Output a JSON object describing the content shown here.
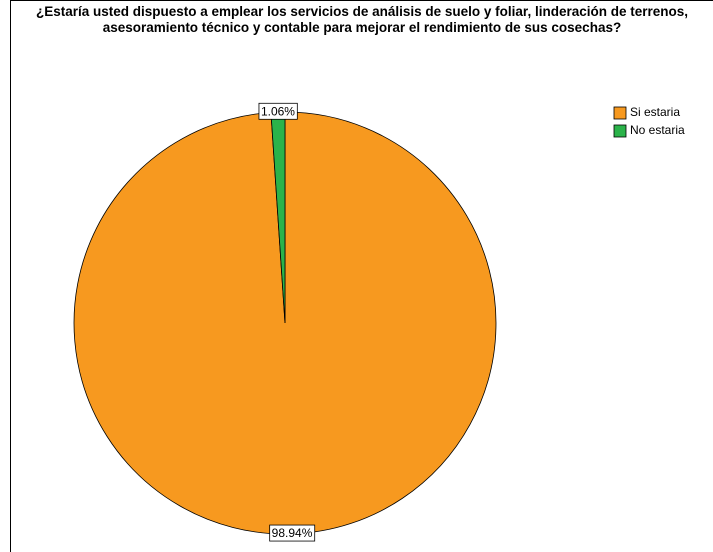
{
  "chart_data": {
    "type": "pie",
    "title": "¿Estaría usted dispuesto a emplear los servicios de análisis de suelo y foliar, linderación de terrenos, asesoramiento técnico y contable para mejorar el rendimiento de sus cosechas?",
    "categories": [
      "Si estaria",
      "No estaria"
    ],
    "values": [
      98.94,
      1.06
    ],
    "value_labels": [
      "98.94%",
      "1.06%"
    ],
    "colors": [
      "#f7991f",
      "#2bb34a"
    ],
    "legend": "top-right"
  }
}
